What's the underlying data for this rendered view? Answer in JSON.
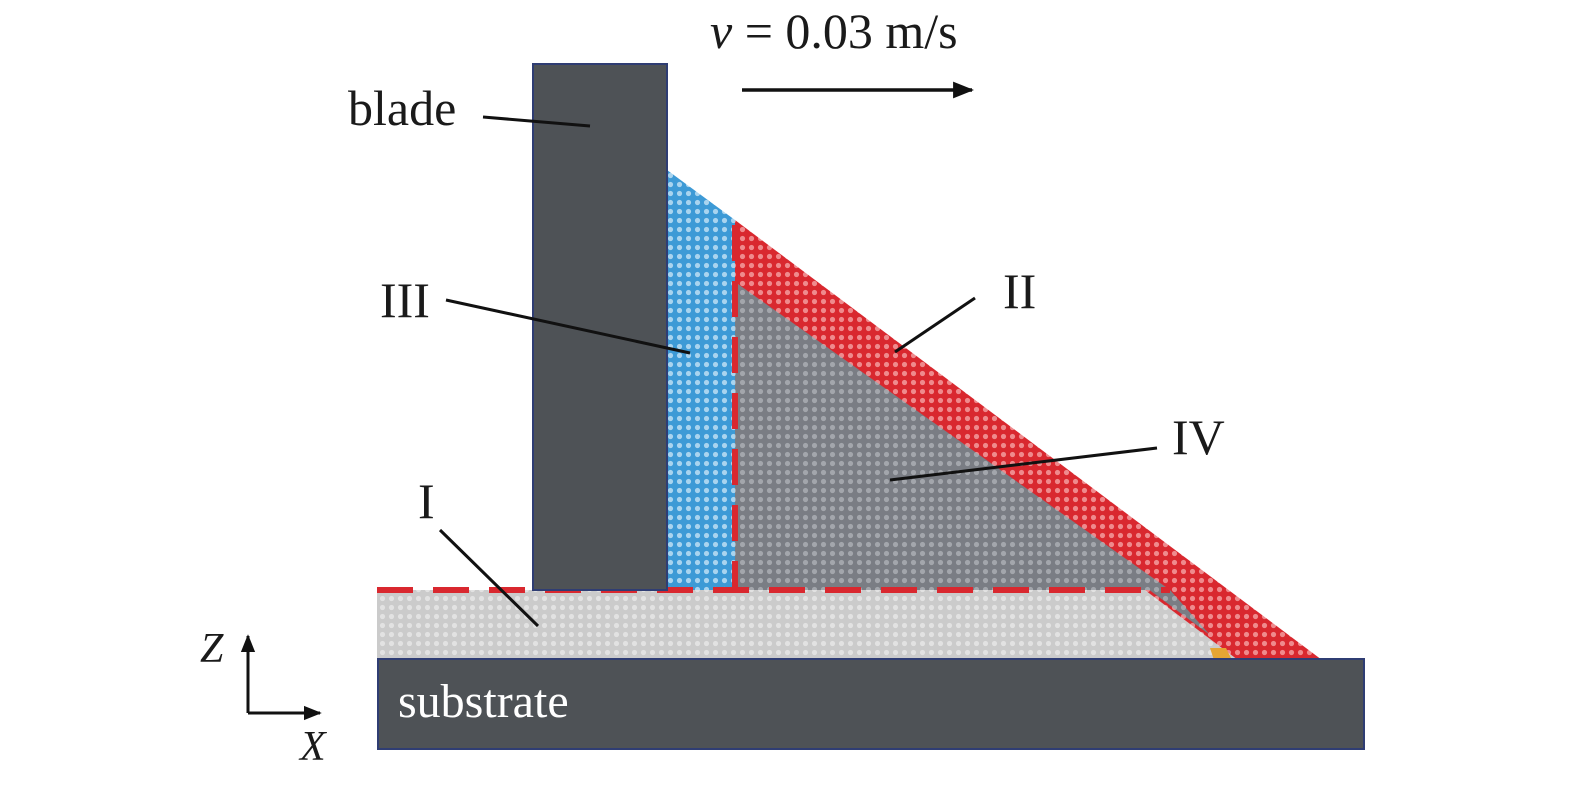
{
  "velocity": {
    "symbol": "v",
    "rest": " = 0.03 m/s"
  },
  "labels": {
    "blade": "blade",
    "substrate": "substrate",
    "region_1": "I",
    "region_2": "II",
    "region_3": "III",
    "region_4": "IV"
  },
  "axes": {
    "z": "Z",
    "x": "X"
  },
  "colors": {
    "blade": "#4e5256",
    "substrate": "#4e5256",
    "region_1": "#c8c8c8",
    "region_2": "#d9282f",
    "region_3": "#4aa3d8",
    "region_4": "#8a8d94",
    "dashed_line": "#d9282f"
  }
}
